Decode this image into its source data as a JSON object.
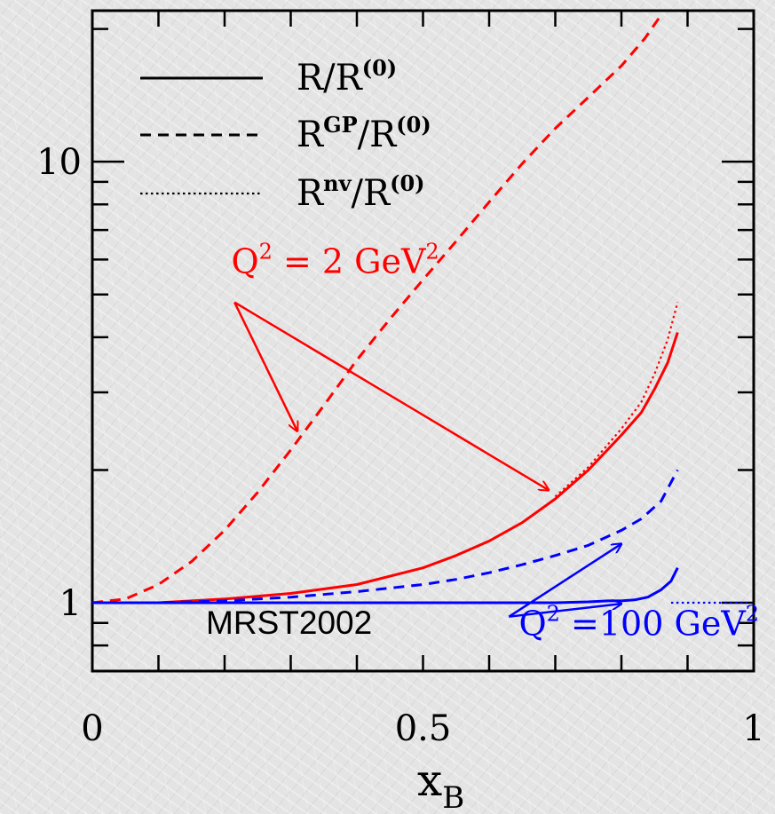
{
  "chart_data": {
    "type": "line",
    "title": "",
    "xlabel": "x",
    "xlabel_sub": "B",
    "ylabel": "",
    "xlim": [
      0,
      1
    ],
    "ylim": [
      0.7,
      22
    ],
    "y_scale": "log",
    "x_ticks": [
      {
        "value": 0,
        "label": "0"
      },
      {
        "value": 0.5,
        "label": "0.5"
      },
      {
        "value": 1,
        "label": "1"
      }
    ],
    "y_ticks": [
      {
        "value": 1,
        "label": "1"
      },
      {
        "value": 10,
        "label": "10"
      }
    ],
    "grid": false,
    "legend": {
      "position": "top-left",
      "entries": [
        {
          "style": "solid",
          "base": "R",
          "sup": "",
          "den": "R",
          "den_sup": "(0)"
        },
        {
          "style": "dashed",
          "base": "R",
          "sup": "GP",
          "den": "R",
          "den_sup": "(0)"
        },
        {
          "style": "dotted",
          "base": "R",
          "sup": "nv",
          "den": "R",
          "den_sup": "(0)"
        }
      ]
    },
    "colors": {
      "q2_2": "#ff0000",
      "q2_100": "#0000ff",
      "axis": "#000000"
    },
    "series": [
      {
        "group": "q2_2",
        "style": "dashed",
        "x": [
          0,
          0.05,
          0.1,
          0.15,
          0.2,
          0.25,
          0.3,
          0.35,
          0.4,
          0.45,
          0.5,
          0.55,
          0.6,
          0.65,
          0.7,
          0.75,
          0.8,
          0.835,
          0.86
        ],
        "y": [
          1.0,
          1.02,
          1.1,
          1.24,
          1.46,
          1.78,
          2.22,
          2.8,
          3.55,
          4.4,
          5.4,
          6.6,
          8.1,
          9.9,
          11.9,
          14.0,
          16.5,
          19.0,
          21.5
        ]
      },
      {
        "group": "q2_2",
        "style": "solid",
        "x": [
          0,
          0.1,
          0.2,
          0.3,
          0.4,
          0.5,
          0.55,
          0.6,
          0.65,
          0.7,
          0.75,
          0.8,
          0.83,
          0.85,
          0.87,
          0.885
        ],
        "y": [
          1.0,
          1.0,
          1.02,
          1.05,
          1.1,
          1.2,
          1.28,
          1.38,
          1.52,
          1.72,
          2.0,
          2.4,
          2.7,
          3.05,
          3.5,
          4.1
        ]
      },
      {
        "group": "q2_2",
        "style": "dotted",
        "x": [
          0.7,
          0.75,
          0.8,
          0.83,
          0.85,
          0.87,
          0.885
        ],
        "y": [
          1.74,
          2.03,
          2.48,
          2.85,
          3.3,
          3.95,
          4.8
        ]
      },
      {
        "group": "q2_100",
        "style": "dashed",
        "x": [
          0,
          0.1,
          0.2,
          0.3,
          0.4,
          0.5,
          0.55,
          0.6,
          0.65,
          0.7,
          0.75,
          0.8,
          0.83,
          0.86,
          0.885
        ],
        "y": [
          1.0,
          1.0,
          1.01,
          1.03,
          1.06,
          1.1,
          1.13,
          1.17,
          1.22,
          1.28,
          1.35,
          1.46,
          1.55,
          1.7,
          2.0
        ]
      },
      {
        "group": "q2_100",
        "style": "solid",
        "x": [
          0,
          0.2,
          0.4,
          0.6,
          0.7,
          0.75,
          0.78,
          0.8,
          0.82,
          0.84,
          0.86,
          0.875,
          0.885
        ],
        "y": [
          1.0,
          1.0,
          1.0,
          1.0,
          1.0,
          1.005,
          1.01,
          1.01,
          1.015,
          1.03,
          1.07,
          1.12,
          1.2
        ]
      },
      {
        "group": "q2_100",
        "style": "dotted",
        "x": [
          0.875,
          0.9,
          0.95,
          0.99
        ],
        "y": [
          1.0,
          1.0,
          1.0,
          1.0
        ]
      }
    ],
    "annotations": [
      {
        "id": "q2-2",
        "label": "Q",
        "sup": "2",
        "rest": " = 2 GeV",
        "rest_sup": "2",
        "color": "#ff0000",
        "font": "serif",
        "anchor": {
          "x": 0.21,
          "y": 5.6
        },
        "arrows": [
          {
            "from": {
              "x": 0.215,
              "y": 4.8
            },
            "to": {
              "x": 0.31,
              "y": 2.45
            }
          },
          {
            "from": {
              "x": 0.215,
              "y": 4.8
            },
            "to": {
              "x": 0.69,
              "y": 1.8
            }
          }
        ]
      },
      {
        "id": "q2-100",
        "label": "Q",
        "sup": "2",
        "rest": " =100 GeV",
        "rest_sup": "2",
        "color": "#0000ff",
        "font": "serif",
        "anchor": {
          "x": 0.645,
          "y": 0.845
        },
        "arrows": [
          {
            "from": {
              "x": 0.63,
              "y": 0.93
            },
            "to": {
              "x": 0.8,
              "y": 1.36
            }
          },
          {
            "from": {
              "x": 0.63,
              "y": 0.93
            },
            "to": {
              "x": 0.8,
              "y": 0.995
            }
          }
        ]
      },
      {
        "id": "mrst",
        "label": "MRST2002",
        "color": "#000000",
        "font": "sans",
        "anchor": {
          "x": 0.09,
          "y": 0.85
        }
      }
    ]
  }
}
